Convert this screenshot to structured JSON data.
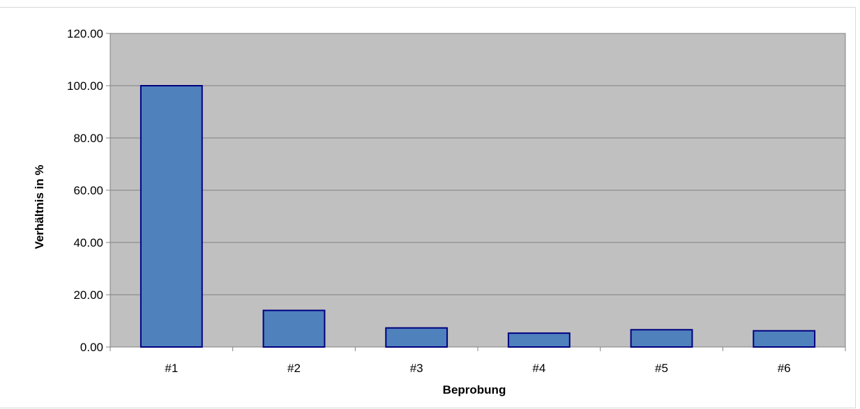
{
  "chart_data": {
    "type": "bar",
    "categories": [
      "#1",
      "#2",
      "#3",
      "#4",
      "#5",
      "#6"
    ],
    "values": [
      100.0,
      14.0,
      7.3,
      5.3,
      6.6,
      6.2
    ],
    "xlabel": "Beprobung",
    "ylabel": "Verhältnis in %",
    "ylim": [
      0,
      120
    ],
    "yticks": [
      "0.00",
      "20.00",
      "40.00",
      "60.00",
      "80.00",
      "100.00",
      "120.00"
    ],
    "grid": true,
    "legend": "none",
    "colors": {
      "plot_background": "#c0c0c0",
      "bar_fill": "#4f81bd",
      "bar_stroke": "#000080",
      "gridline": "#808080",
      "axis": "#808080"
    }
  }
}
